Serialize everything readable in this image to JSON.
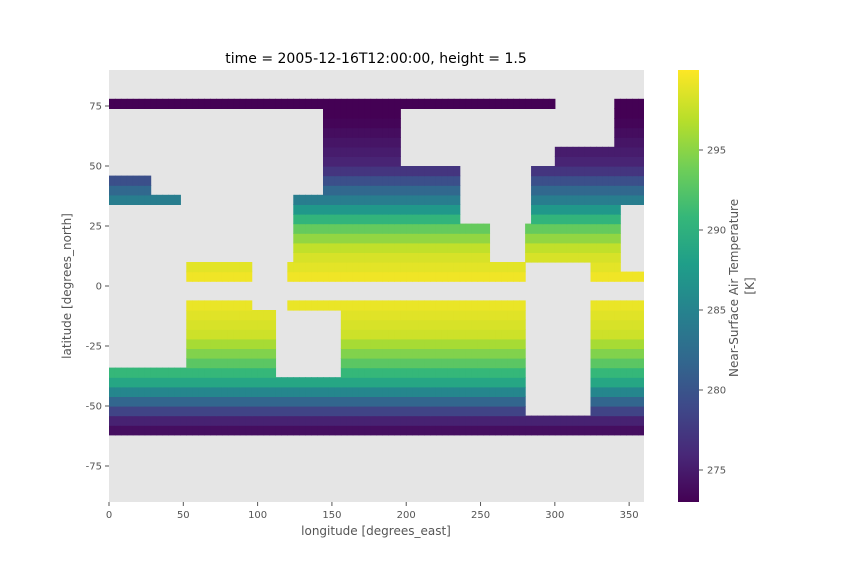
{
  "chart_data": {
    "type": "heatmap",
    "title": "time = 2005-12-16T12:00:00, height = 1.5",
    "xlabel": "longitude [degrees_east]",
    "ylabel": "latitude [degrees_north]",
    "xlim": [
      0,
      360
    ],
    "ylim": [
      -90,
      90
    ],
    "xticks": [
      0,
      50,
      100,
      150,
      200,
      250,
      300,
      350
    ],
    "yticks": [
      -75,
      -50,
      -25,
      0,
      25,
      50,
      75
    ],
    "colorbar": {
      "label_line1": "Near-Surface Air Temperature",
      "label_line2": "[K]",
      "range": [
        273,
        300
      ],
      "ticks": [
        275,
        280,
        285,
        290,
        295
      ],
      "colormap": "viridis"
    },
    "masked_color": "#e5e5e5",
    "grid": false,
    "masked_regions": [
      "land surfaces",
      "areas warmer than the color range (tropical band between about -30 and 30 latitude)",
      "latitudes north of about 75 and south of about -63"
    ],
    "temperature_pattern": [
      {
        "lat": 70,
        "value": 273
      },
      {
        "lat": 50,
        "value": 276
      },
      {
        "lat": 35,
        "value": 285
      },
      {
        "lat": 25,
        "value": 293
      },
      {
        "lat": 15,
        "value": 298
      },
      {
        "lat": 0,
        "value": 300
      },
      {
        "lat": -20,
        "value": 298
      },
      {
        "lat": -30,
        "value": 294
      },
      {
        "lat": -40,
        "value": 289
      },
      {
        "lat": -50,
        "value": 280
      },
      {
        "lat": -58,
        "value": 274
      }
    ]
  },
  "colors": {
    "viridis": [
      "#440154",
      "#482878",
      "#3e4989",
      "#31688e",
      "#26828e",
      "#1f9e89",
      "#35b779",
      "#6ece58",
      "#b5de2b",
      "#fde725"
    ]
  }
}
